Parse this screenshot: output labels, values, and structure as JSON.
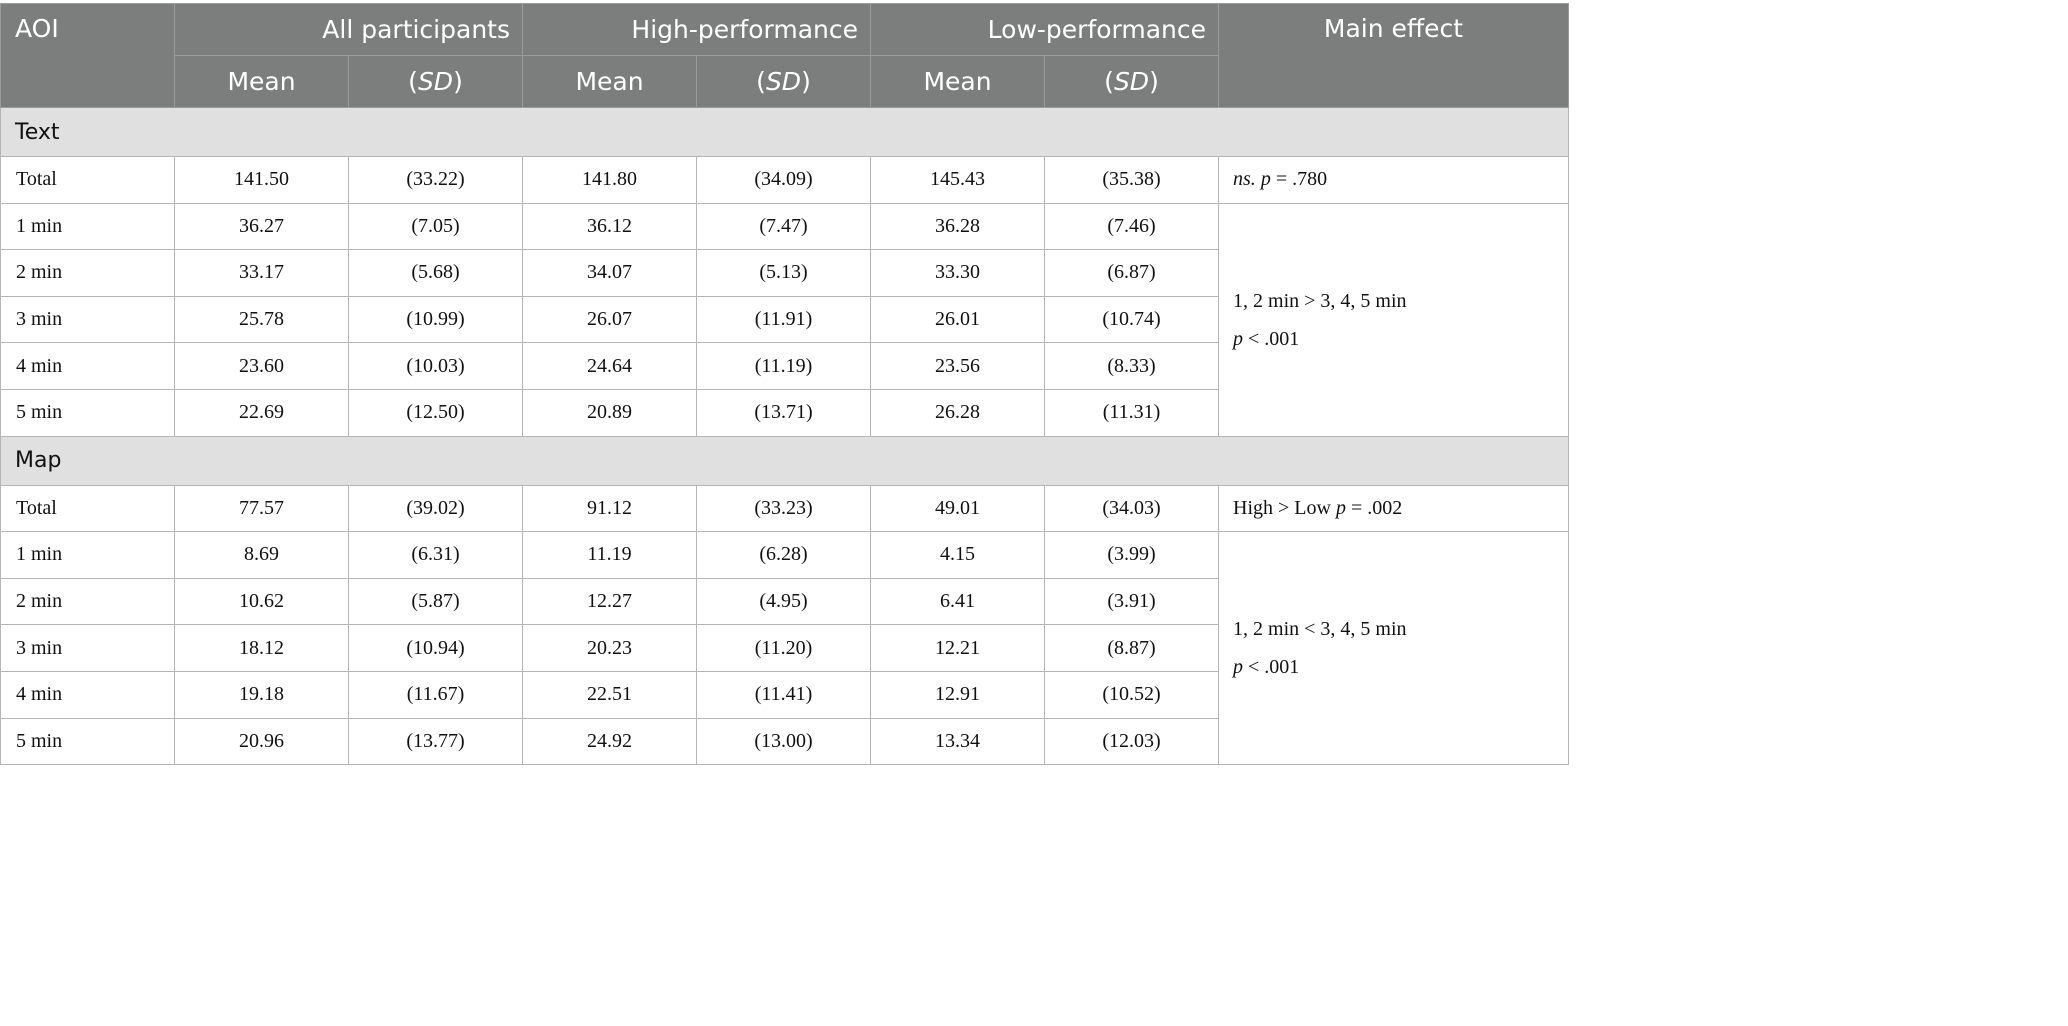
{
  "header": {
    "aoi": "AOI",
    "groups": [
      "All participants",
      "High-performance",
      "Low-performance"
    ],
    "main_effect": "Main effect",
    "mean": "Mean",
    "sd_open": "(",
    "sd": "SD",
    "sd_close": ")"
  },
  "sections": [
    {
      "title": "Text",
      "total": {
        "label": "Total",
        "values": [
          "141.50",
          "(33.22)",
          "141.80",
          "(34.09)",
          "145.43",
          "(35.38)"
        ],
        "effect": {
          "ns": "ns.",
          "p": "p",
          "rest": " = .780"
        }
      },
      "rows": [
        {
          "label": "1 min",
          "values": [
            "36.27",
            "(7.05)",
            "36.12",
            "(7.47)",
            "36.28",
            "(7.46)"
          ]
        },
        {
          "label": "2 min",
          "values": [
            "33.17",
            "(5.68)",
            "34.07",
            "(5.13)",
            "33.30",
            "(6.87)"
          ]
        },
        {
          "label": "3 min",
          "values": [
            "25.78",
            "(10.99)",
            "26.07",
            "(11.91)",
            "26.01",
            "(10.74)"
          ]
        },
        {
          "label": "4 min",
          "values": [
            "23.60",
            "(10.03)",
            "24.64",
            "(11.19)",
            "23.56",
            "(8.33)"
          ]
        },
        {
          "label": "5 min",
          "values": [
            "22.69",
            "(12.50)",
            "20.89",
            "(13.71)",
            "26.28",
            "(11.31)"
          ]
        }
      ],
      "minutes_effect": {
        "line1": "1, 2 min > 3, 4, 5 min",
        "p": "p",
        "line2_rest": " < .001"
      }
    },
    {
      "title": "Map",
      "total": {
        "label": "Total",
        "values": [
          "77.57",
          "(39.02)",
          "91.12",
          "(33.23)",
          "49.01",
          "(34.03)"
        ],
        "effect": {
          "prefix": "High > Low ",
          "p": "p",
          "rest": " = .002"
        }
      },
      "rows": [
        {
          "label": "1 min",
          "values": [
            "8.69",
            "(6.31)",
            "11.19",
            "(6.28)",
            "4.15",
            "(3.99)"
          ]
        },
        {
          "label": "2 min",
          "values": [
            "10.62",
            "(5.87)",
            "12.27",
            "(4.95)",
            "6.41",
            "(3.91)"
          ]
        },
        {
          "label": "3 min",
          "values": [
            "18.12",
            "(10.94)",
            "20.23",
            "(11.20)",
            "12.21",
            "(8.87)"
          ]
        },
        {
          "label": "4 min",
          "values": [
            "19.18",
            "(11.67)",
            "22.51",
            "(11.41)",
            "12.91",
            "(10.52)"
          ]
        },
        {
          "label": "5 min",
          "values": [
            "20.96",
            "(13.77)",
            "24.92",
            "(13.00)",
            "13.34",
            "(12.03)"
          ]
        }
      ],
      "minutes_effect": {
        "line1": "1, 2 min < 3, 4, 5 min",
        "p": "p",
        "line2_rest": " < .001"
      }
    }
  ]
}
